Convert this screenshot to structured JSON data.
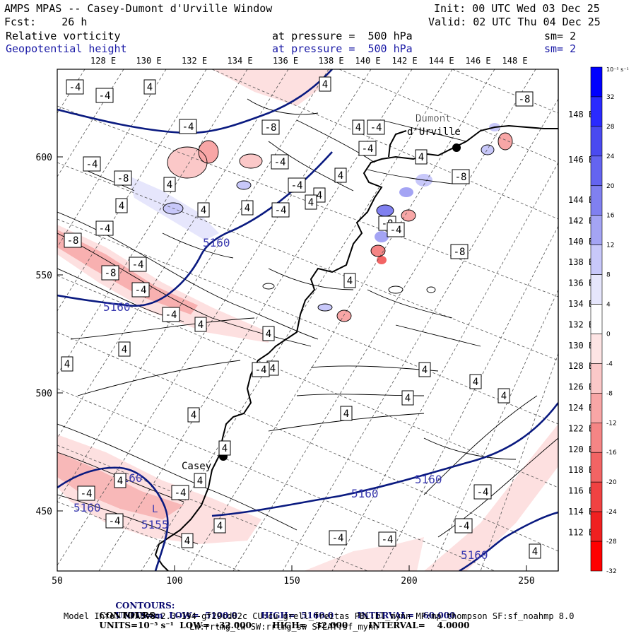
{
  "header": {
    "title": "AMPS MPAS -- Casey-Dumont d'Urville Window",
    "init": "Init: 00 UTC Wed 03 Dec 25",
    "fcst": "Fcst:    26 h",
    "valid": "Valid: 02 UTC Thu 04 Dec 25",
    "field1": {
      "name": "Relative vorticity",
      "level": "at pressure =  500 hPa",
      "smooth": "sm= 2"
    },
    "field2": {
      "name": "Geopotential height",
      "level": "at pressure =  500 hPa",
      "smooth": "sm= 2"
    }
  },
  "map": {
    "top_lon_labels": [
      "128 E",
      "130 E",
      "132 E",
      "134 E",
      "136 E",
      "138 E",
      "140 E",
      "142 E",
      "144 E",
      "146 E",
      "148 E"
    ],
    "right_lon_labels": [
      "148 E",
      "146 E",
      "144 E",
      "142 E",
      "140 E",
      "138 E",
      "136 E",
      "134 E",
      "132 E",
      "130 E",
      "128 E",
      "126 E",
      "124 E",
      "122 E",
      "120 E",
      "118 E",
      "116 E",
      "114 E",
      "112 E"
    ],
    "x_ticks": [
      "50",
      "100",
      "150",
      "200",
      "250"
    ],
    "y_ticks": [
      "600",
      "550",
      "500",
      "450"
    ],
    "stations": [
      {
        "name": "Dumont\nd'Urville",
        "label": "Dumont",
        "label2": "d'Urville"
      },
      {
        "name": "Casey",
        "label": "Casey"
      }
    ],
    "height_labels": [
      "5160",
      "5160",
      "5160",
      "5160",
      "5160",
      "5160"
    ],
    "low_label": "L",
    "low_value": "5155",
    "vort_labels": [
      "-4",
      "-4",
      "4",
      "4",
      "-4",
      "-8",
      "-4",
      "-4",
      "-8",
      "4",
      "4",
      "4",
      "4",
      "-4",
      "4",
      "4",
      "4",
      "-4",
      "-4",
      "4",
      "-8",
      "-4",
      "-4",
      "-8",
      "-4",
      "-4",
      "4",
      "4",
      "4",
      "4",
      "4",
      "4",
      "4",
      "4",
      "4",
      "4",
      "4",
      "4",
      "4",
      "4",
      "-4",
      "-4",
      "-4",
      "4",
      "-8",
      "-8",
      "-8",
      "-8",
      "-4",
      "-4",
      "-4",
      "4",
      "4",
      "4",
      "-4",
      "-4",
      "-4",
      "-4",
      "4"
    ]
  },
  "colorbar": {
    "unit_label": "10⁻⁵ s⁻¹",
    "labels": [
      "32",
      "28",
      "24",
      "20",
      "16",
      "12",
      "8",
      "4",
      "0",
      "-4",
      "-8",
      "-12",
      "-16",
      "-20",
      "-24",
      "-28",
      "-32"
    ],
    "colors": [
      "#0000ff",
      "#2a2aff",
      "#4a4af0",
      "#6464f0",
      "#8080f0",
      "#a4a4f4",
      "#c8c8fa",
      "#e6e6fc",
      "#ffffff",
      "#fde4e4",
      "#fbc8c8",
      "#f8a6a6",
      "#f58585",
      "#f26464",
      "#f04242",
      "#f02020",
      "#ff0000"
    ]
  },
  "footer": {
    "line1_label": "CONTOURS:",
    "line1": "UNITS=m  LOW=  5100.0        HIGH=  5160.0        INTERVAL=   60.000",
    "line2_label": "CONTOURS:",
    "line2": "UNITS=10⁻⁵ s⁻¹  LOW=  -32.000       HIGH=   32.000       INTERVAL=    4.0000",
    "line3": "Model Info: MPASv8.2.3-194-gf29cd82c CU:cu_grell_freitas PBL:bl_mynn MP:mp_thompson SF:sf_noahmp 8.0",
    "line4": "LW:rrtmg_lw SW:rrtmg_sw SFLAY:sf_mynn"
  }
}
